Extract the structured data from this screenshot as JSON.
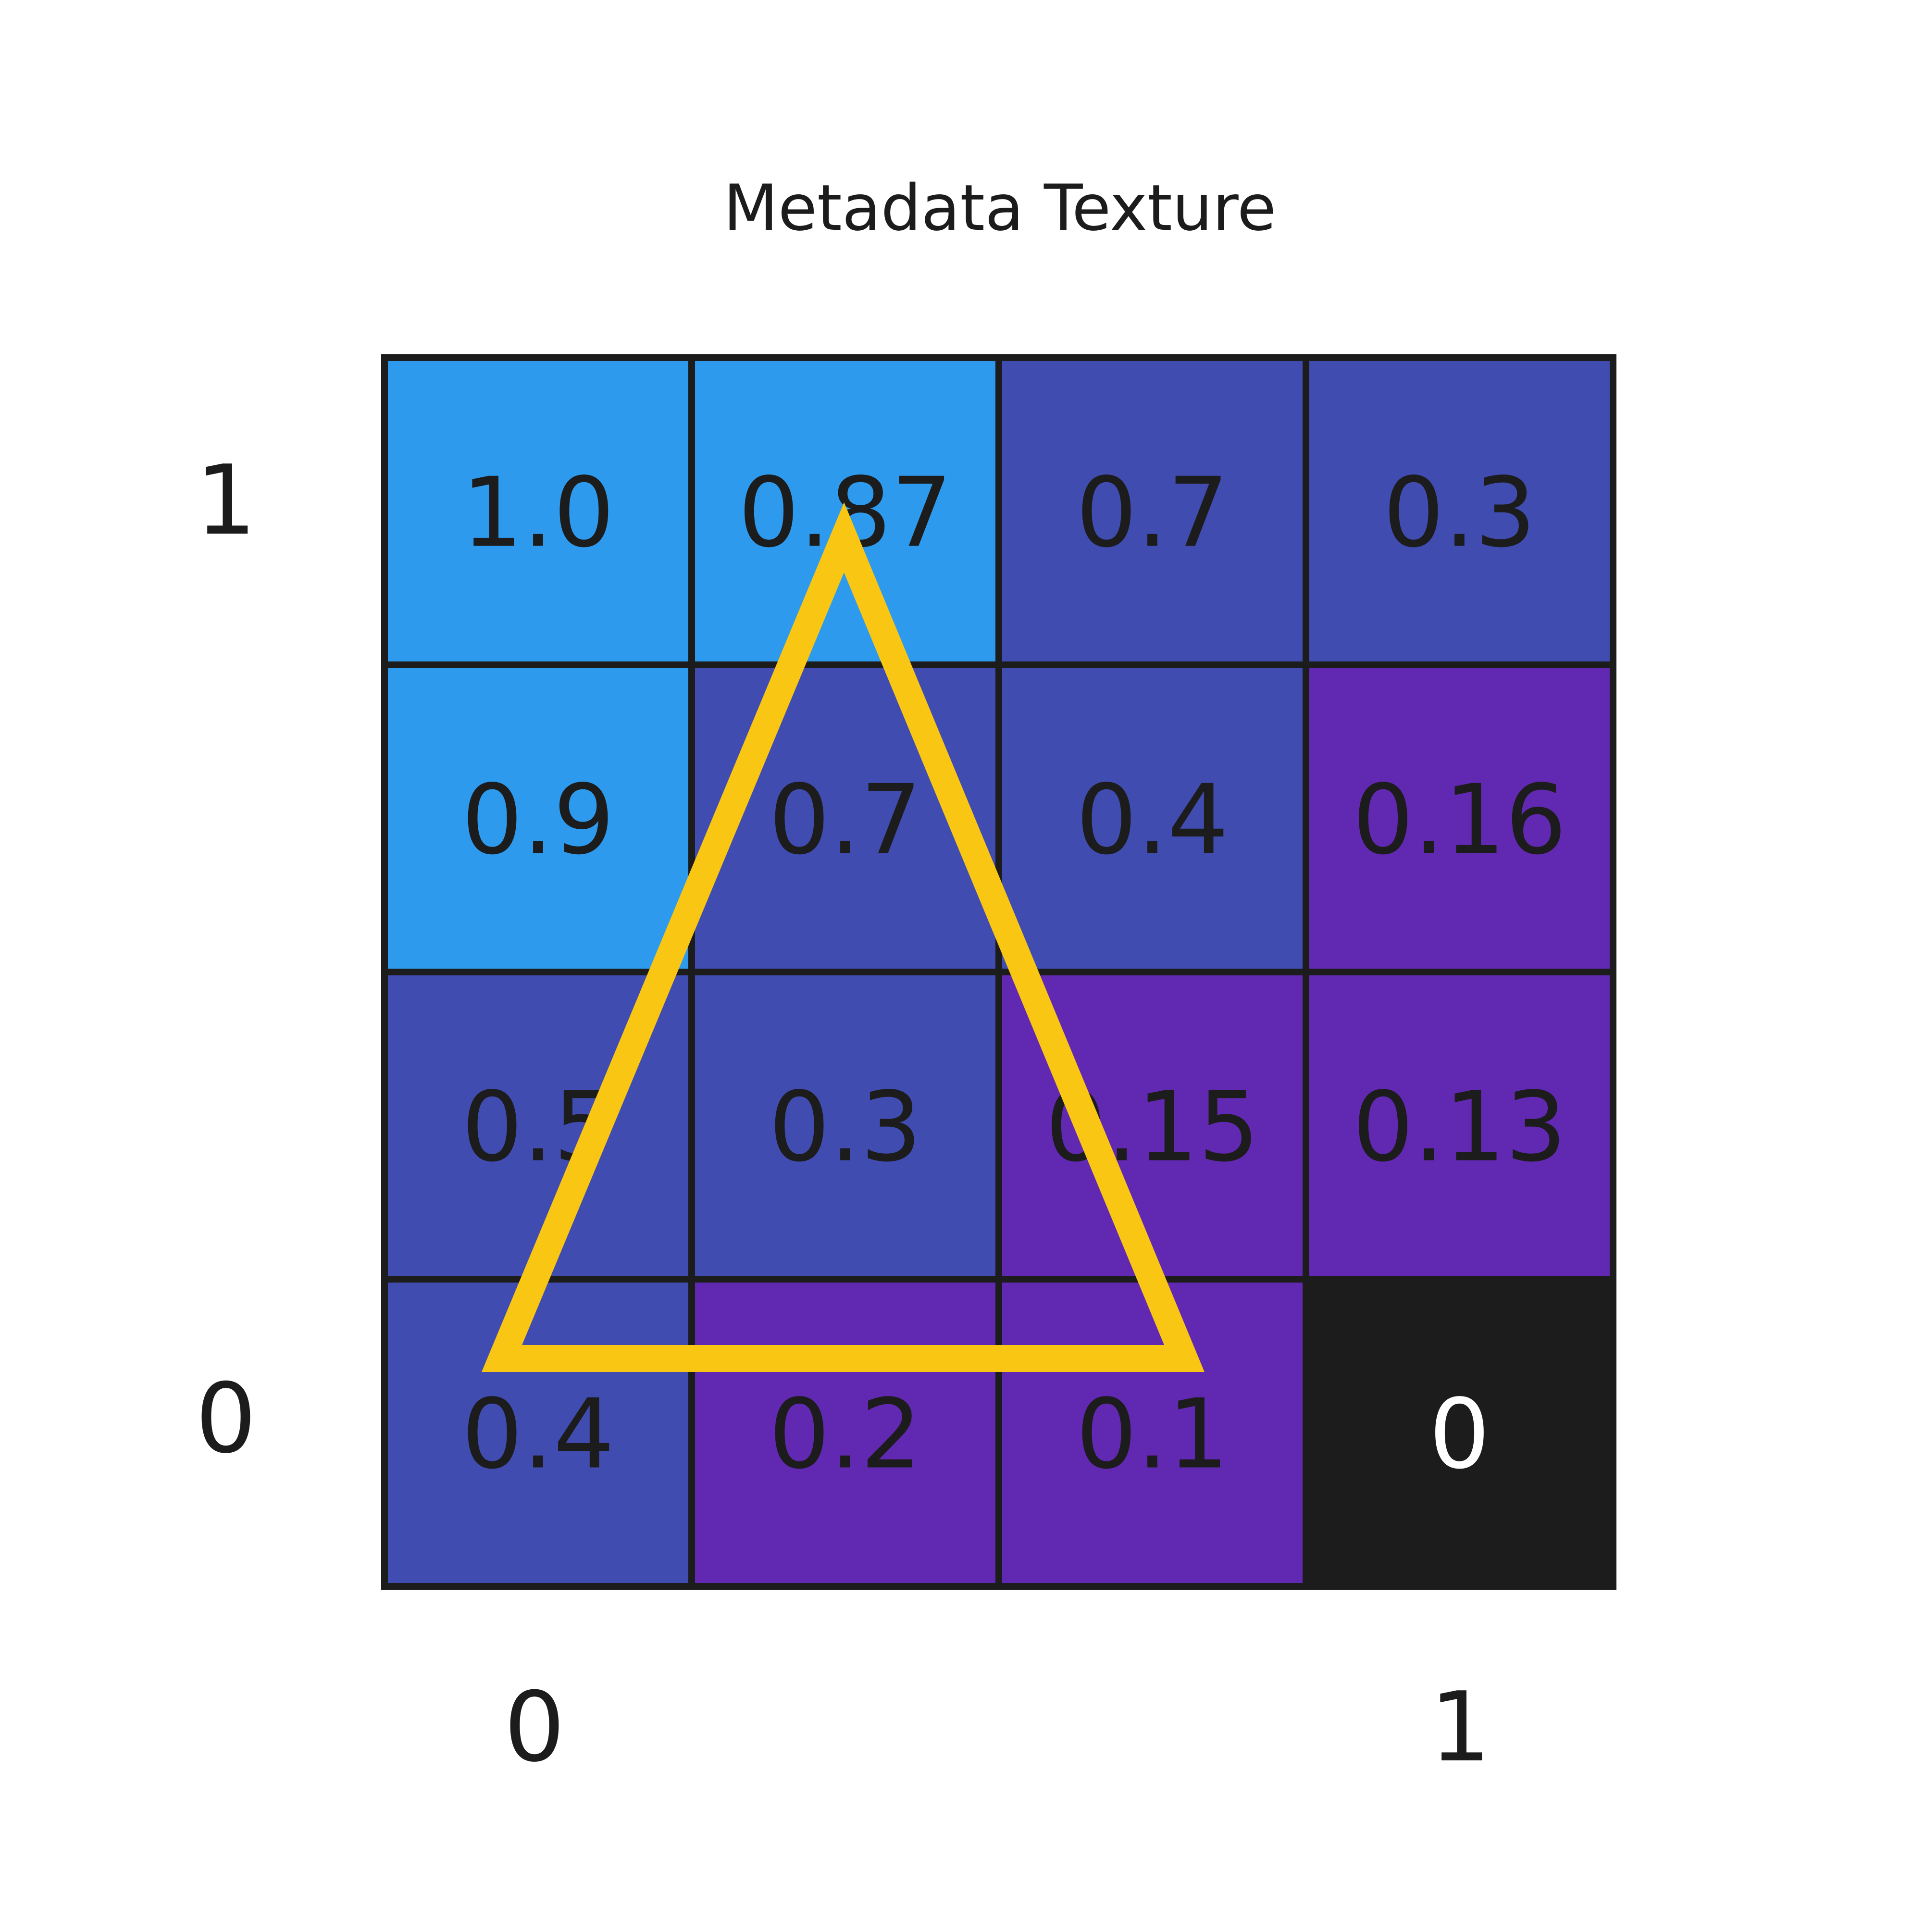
{
  "title": "Metadata Texture",
  "axes": {
    "x_ticks": [
      "0",
      "1"
    ],
    "y_ticks": [
      "1",
      "0"
    ]
  },
  "grid": {
    "rows": [
      [
        "1.0",
        "0.87",
        "0.7",
        "0.3"
      ],
      [
        "0.9",
        "0.7",
        "0.4",
        "0.16"
      ],
      [
        "0.5",
        "0.3",
        "0.15",
        "0.13"
      ],
      [
        "0.4",
        "0.2",
        "0.1",
        "0"
      ]
    ],
    "colors": [
      [
        "#2e9aee",
        "#2e9aee",
        "#404cb0",
        "#404cb0"
      ],
      [
        "#2e9aee",
        "#404cb0",
        "#404cb0",
        "#6129b2"
      ],
      [
        "#404cb0",
        "#404cb0",
        "#6129b2",
        "#6129b2"
      ],
      [
        "#404cb0",
        "#6129b2",
        "#6129b2",
        "#1c1c1c"
      ]
    ],
    "text_colors": [
      [
        "#1c1c1c",
        "#1c1c1c",
        "#1c1c1c",
        "#1c1c1c"
      ],
      [
        "#1c1c1c",
        "#1c1c1c",
        "#1c1c1c",
        "#1c1c1c"
      ],
      [
        "#1c1c1c",
        "#1c1c1c",
        "#1c1c1c",
        "#1c1c1c"
      ],
      [
        "#1c1c1c",
        "#1c1c1c",
        "#1c1c1c",
        "#ffffff"
      ]
    ],
    "border_color": "#1c1c1c"
  },
  "triangle": {
    "color": "#f9c613"
  }
}
